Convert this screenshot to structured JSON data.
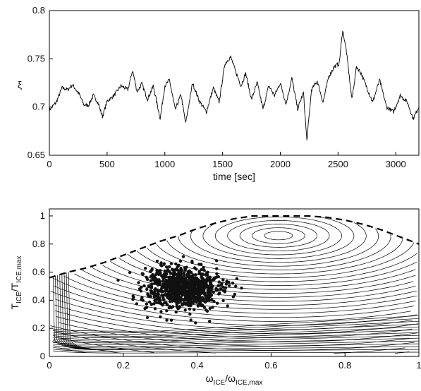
{
  "chart_data": [
    {
      "type": "line",
      "xlabel": "time [sec]",
      "ylabel": "ξ",
      "xlim": [
        0,
        3200
      ],
      "ylim": [
        0.65,
        0.8
      ],
      "xticks": [
        "0",
        "500",
        "1000",
        "1500",
        "2000",
        "2500",
        "3000"
      ],
      "yticks": [
        "0.65",
        "0.7",
        "0.75",
        "0.8"
      ],
      "grid": false,
      "series": [
        {
          "x": [
            0,
            60,
            110,
            160,
            200,
            260,
            300,
            340,
            380,
            420,
            460,
            500,
            560,
            620,
            680,
            720,
            760,
            800,
            850,
            900,
            960,
            1000,
            1040,
            1090,
            1140,
            1180,
            1240,
            1300,
            1360,
            1420,
            1470,
            1520,
            1570,
            1610,
            1660,
            1700,
            1750,
            1800,
            1850,
            1900,
            1950,
            2000,
            2050,
            2100,
            2150,
            2200,
            2230,
            2270,
            2320,
            2370,
            2420,
            2470,
            2510,
            2540,
            2570,
            2620,
            2660,
            2700,
            2750,
            2800,
            2860,
            2920,
            2980,
            3040,
            3100,
            3150,
            3200
          ],
          "values": [
            0.697,
            0.705,
            0.72,
            0.718,
            0.723,
            0.713,
            0.702,
            0.702,
            0.712,
            0.705,
            0.69,
            0.706,
            0.712,
            0.722,
            0.718,
            0.738,
            0.716,
            0.724,
            0.708,
            0.722,
            0.688,
            0.722,
            0.728,
            0.697,
            0.713,
            0.683,
            0.725,
            0.706,
            0.695,
            0.72,
            0.705,
            0.745,
            0.752,
            0.738,
            0.722,
            0.735,
            0.708,
            0.725,
            0.698,
            0.722,
            0.712,
            0.725,
            0.703,
            0.73,
            0.698,
            0.715,
            0.665,
            0.718,
            0.727,
            0.705,
            0.732,
            0.742,
            0.745,
            0.78,
            0.76,
            0.708,
            0.742,
            0.735,
            0.72,
            0.705,
            0.728,
            0.7,
            0.695,
            0.712,
            0.705,
            0.688,
            0.7
          ]
        }
      ]
    },
    {
      "type": "scatter",
      "xlabel": "ω_ICE/ω_ICE,max",
      "ylabel": "T_ICE/T_ICE,max",
      "xlabel_parts": {
        "a": "ω",
        "a_sub": "ICE",
        "sep": "/ω",
        "b_sub": "ICE,max"
      },
      "ylabel_parts": {
        "a": "T",
        "a_sub": "ICE",
        "sep": "/T",
        "b_sub": "ICE,max"
      },
      "xlim": [
        0,
        1
      ],
      "ylim": [
        0,
        1.05
      ],
      "xticks": [
        "0",
        "0.2",
        "0.4",
        "0.6",
        "0.8",
        "1"
      ],
      "yticks": [
        "0",
        "0.2",
        "0.4",
        "0.6",
        "0.8",
        "1"
      ],
      "grid": false,
      "envelope": {
        "x": [
          0,
          0.05,
          0.1,
          0.15,
          0.2,
          0.25,
          0.3,
          0.35,
          0.4,
          0.45,
          0.5,
          0.55,
          0.6,
          0.65,
          0.7,
          0.75,
          0.8,
          0.85,
          0.9,
          0.95,
          1.0
        ],
        "values": [
          0.56,
          0.6,
          0.63,
          0.67,
          0.72,
          0.77,
          0.82,
          0.86,
          0.91,
          0.95,
          0.98,
          1.0,
          1.0,
          1.0,
          1.0,
          0.99,
          0.97,
          0.94,
          0.9,
          0.85,
          0.8
        ]
      },
      "operating_cloud": {
        "center": [
          0.36,
          0.49
        ],
        "spread": [
          0.05,
          0.075
        ],
        "count": 900
      }
    }
  ]
}
